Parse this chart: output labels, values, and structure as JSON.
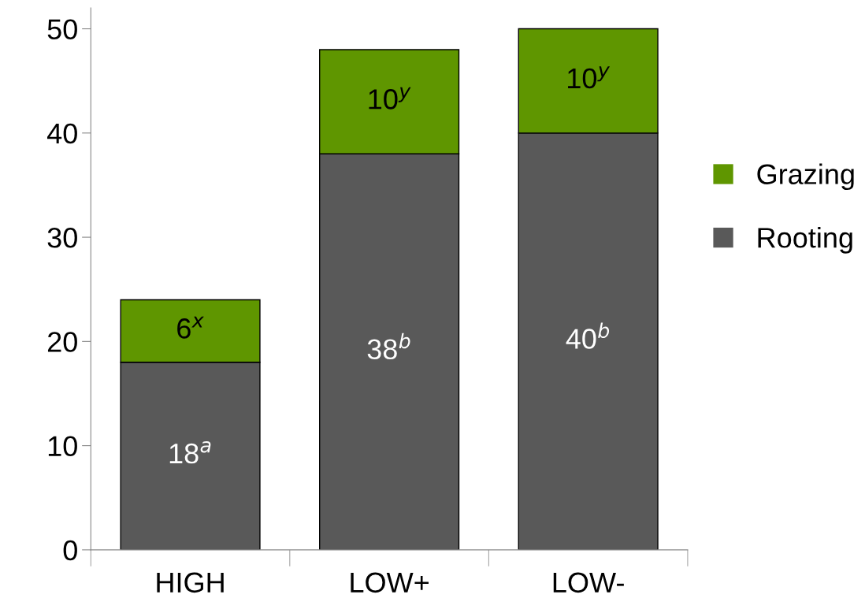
{
  "chart_data": {
    "type": "bar",
    "stacked": true,
    "categories": [
      "HIGH",
      "LOW+",
      "LOW-"
    ],
    "series": [
      {
        "name": "Rooting",
        "color": "#595959",
        "values": [
          18,
          38,
          40
        ],
        "value_labels": [
          "18$^{a}$",
          "38$^{b}$",
          "40$^{b}$"
        ]
      },
      {
        "name": "Grazing",
        "color": "#5f9600",
        "values": [
          6,
          10,
          10
        ],
        "value_labels": [
          "6$^{x}$",
          "10$^{y}$",
          "10$^{y}$"
        ]
      }
    ],
    "ylim": [
      0,
      52
    ],
    "yticks": [
      0,
      10,
      20,
      30,
      40,
      50
    ],
    "grid": false,
    "legend": "right"
  }
}
